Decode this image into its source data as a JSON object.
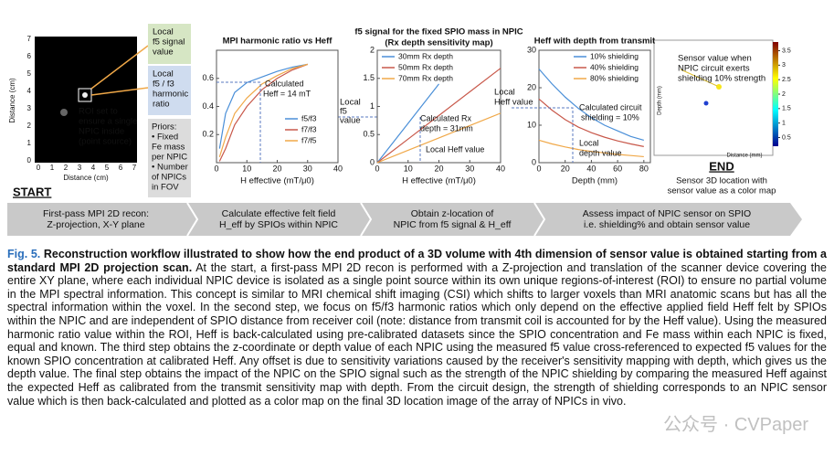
{
  "figure": {
    "image_panel": {
      "y_label": "Distance (cm)",
      "x_label": "Distance (cm)",
      "xticks": [
        "0",
        "1",
        "2",
        "3",
        "4",
        "5",
        "6",
        "7"
      ],
      "yticks": [
        "0",
        "1",
        "2",
        "3",
        "4",
        "5",
        "6",
        "7"
      ],
      "roi_note": [
        "ROI set to",
        "ensure a single",
        "NPIC inside",
        "(point source)"
      ],
      "start": "START"
    },
    "boxes": {
      "f5_signal": [
        "Local",
        "f5 signal",
        "value"
      ],
      "ratio": [
        "Local",
        "f5 / f3",
        "harmonic",
        "ratio"
      ],
      "priors": [
        "Priors:",
        "• Fixed",
        "Fe mass",
        "per NPIC",
        "• Number",
        "of NPICs",
        "in FOV"
      ]
    },
    "plots": [
      {
        "type": "line",
        "title": [
          "MPI harmonic ratio vs Heff"
        ],
        "x_label": "H effective (mT/μ0)",
        "xlim": [
          0,
          40
        ],
        "ylim": [
          0,
          0.8
        ],
        "xticks": [
          0,
          10,
          20,
          30,
          40
        ],
        "yticks": [
          0.2,
          0.4,
          0.6
        ],
        "x": [
          1,
          3,
          6,
          10,
          15,
          20,
          25,
          30
        ],
        "series": [
          {
            "name": "f5/f3",
            "color": "#4a8fd8",
            "values": [
              0.1,
              0.35,
              0.5,
              0.57,
              0.61,
              0.65,
              0.68,
              0.7
            ]
          },
          {
            "name": "f7/f3",
            "color": "#c8584a",
            "values": [
              0.01,
              0.1,
              0.27,
              0.4,
              0.52,
              0.6,
              0.66,
              0.7
            ]
          },
          {
            "name": "f7/f5",
            "color": "#f0a848",
            "values": [
              0.04,
              0.18,
              0.35,
              0.46,
              0.56,
              0.62,
              0.67,
              0.7
            ]
          }
        ],
        "annotations": [
          "Calculated",
          "Heff = 14 mT"
        ]
      },
      {
        "type": "line",
        "title": [
          "f5 signal for the fixed SPIO mass in NPIC",
          "(Rx depth sensitivity map)"
        ],
        "x_label": "H effective (mT/μ0)",
        "xlim": [
          0,
          40
        ],
        "ylim": [
          0,
          2
        ],
        "xticks": [
          0,
          10,
          20,
          30,
          40
        ],
        "yticks": [
          0,
          0.5,
          1,
          1.5,
          2
        ],
        "x": [
          0,
          10,
          20,
          30,
          40
        ],
        "series": [
          {
            "name": "30mm Rx depth",
            "color": "#4a8fd8",
            "values": [
              0,
              0.7,
              1.4,
              null,
              null
            ]
          },
          {
            "name": "50mm Rx depth",
            "color": "#c8584a",
            "values": [
              0,
              0.42,
              0.84,
              1.26,
              1.68
            ]
          },
          {
            "name": "70mm Rx depth",
            "color": "#f0a848",
            "values": [
              0,
              0.22,
              0.44,
              0.66,
              0.88
            ]
          }
        ],
        "annotations": [
          "Calculated Rx",
          "depth = 31mm",
          "Local Heff value"
        ]
      },
      {
        "type": "line",
        "title": [
          "Heff with depth from transmit"
        ],
        "x_label": "Depth (mm)",
        "xlim": [
          0,
          85
        ],
        "ylim": [
          0,
          30
        ],
        "xticks": [
          0,
          20,
          40,
          60,
          80
        ],
        "yticks": [
          0,
          10,
          20,
          30
        ],
        "x": [
          0,
          10,
          20,
          30,
          40,
          50,
          60,
          70,
          80
        ],
        "series": [
          {
            "name": "10% shielding",
            "color": "#4a8fd8",
            "values": [
              25,
              21,
              17.5,
              14.5,
              12,
              10,
              8.5,
              7,
              6
            ]
          },
          {
            "name": "40% shielding",
            "color": "#c8584a",
            "values": [
              17,
              14,
              11.5,
              9.5,
              8,
              6.8,
              5.8,
              5,
              4.3
            ]
          },
          {
            "name": "80% shielding",
            "color": "#f0a848",
            "values": [
              6,
              5,
              4.2,
              3.5,
              3,
              2.6,
              2.2,
              1.9,
              1.6
            ]
          }
        ],
        "annotations": [
          "Calculated circuit",
          "shielding = 10%",
          "Local",
          "depth value"
        ]
      }
    ],
    "side_labels": {
      "f5_value": [
        "Local",
        "f5",
        "value"
      ],
      "heff_value": [
        "Local",
        "Heff value"
      ]
    },
    "volume_panel": {
      "note": [
        "Sensor value when",
        "NPIC circuit exerts",
        "shielding 10% strength"
      ],
      "y_label": "Depth (mm)",
      "x_label": "Distance (mm)",
      "colorbar_ticks": [
        0.5,
        1,
        1.5,
        2,
        2.5,
        3,
        3.5
      ],
      "end": "END",
      "end_caption": [
        "Sensor 3D location with",
        "sensor value as a color map"
      ]
    },
    "stages": [
      [
        "First-pass MPI 2D recon:",
        "Z-projection, X-Y plane"
      ],
      [
        "Calculate effective felt field",
        "H_eff by SPIOs within NPIC"
      ],
      [
        "Obtain z-location of",
        "NPIC from f5 signal & H_eff"
      ],
      [
        "Assess impact of NPIC sensor on SPIO",
        "i.e. shielding% and obtain sensor value"
      ]
    ]
  },
  "caption": {
    "label": "Fig. 5.",
    "title": "Reconstruction workflow illustrated to show how the end product of a 3D volume with 4th dimension of sensor value is obtained starting from a standard MPI 2D projection scan.",
    "body": "At the start, a first-pass MPI 2D recon is performed with a Z-projection and translation of the scanner device covering the entire XY plane, where each individual NPIC device is isolated as a single point source within its own unique regions-of-interest (ROI) to ensure no partial volume in the MPI spectral information. This concept is similar to MRI chemical shift imaging (CSI) which shifts to larger voxels than MRI anatomic scans but has all the spectral information within the voxel. In the second step, we focus on f5/f3 harmonic ratios which only depend on the effective applied field Heff felt by SPIOs within the NPIC and are independent of SPIO distance from receiver coil (note: distance from transmit coil is accounted for by the Heff value). Using the measured harmonic ratio value within the ROI, Heff is back-calculated using pre-calibrated datasets since the SPIO concentration and Fe mass within each NPIC is fixed, equal and known. The third step obtains the z-coordinate or depth value of each NPIC using the measured f5 value cross-referenced to expected f5 values for the known SPIO concentration at calibrated Heff. Any offset is due to sensitivity variations caused by the receiver's sensitivity mapping with depth, which gives us the depth value. The final step obtains the impact of the NPIC on the SPIO signal such as the strength of the NPIC shielding by comparing the measured Heff against the expected Heff as calibrated from the transmit sensitivity map with depth. From the circuit design, the strength of shielding corresponds to an NPIC sensor value which is then back-calculated and plotted as a color map on the final 3D location image of the array of NPICs in vivo.",
    "watermark": "公众号 · CVPaper"
  }
}
